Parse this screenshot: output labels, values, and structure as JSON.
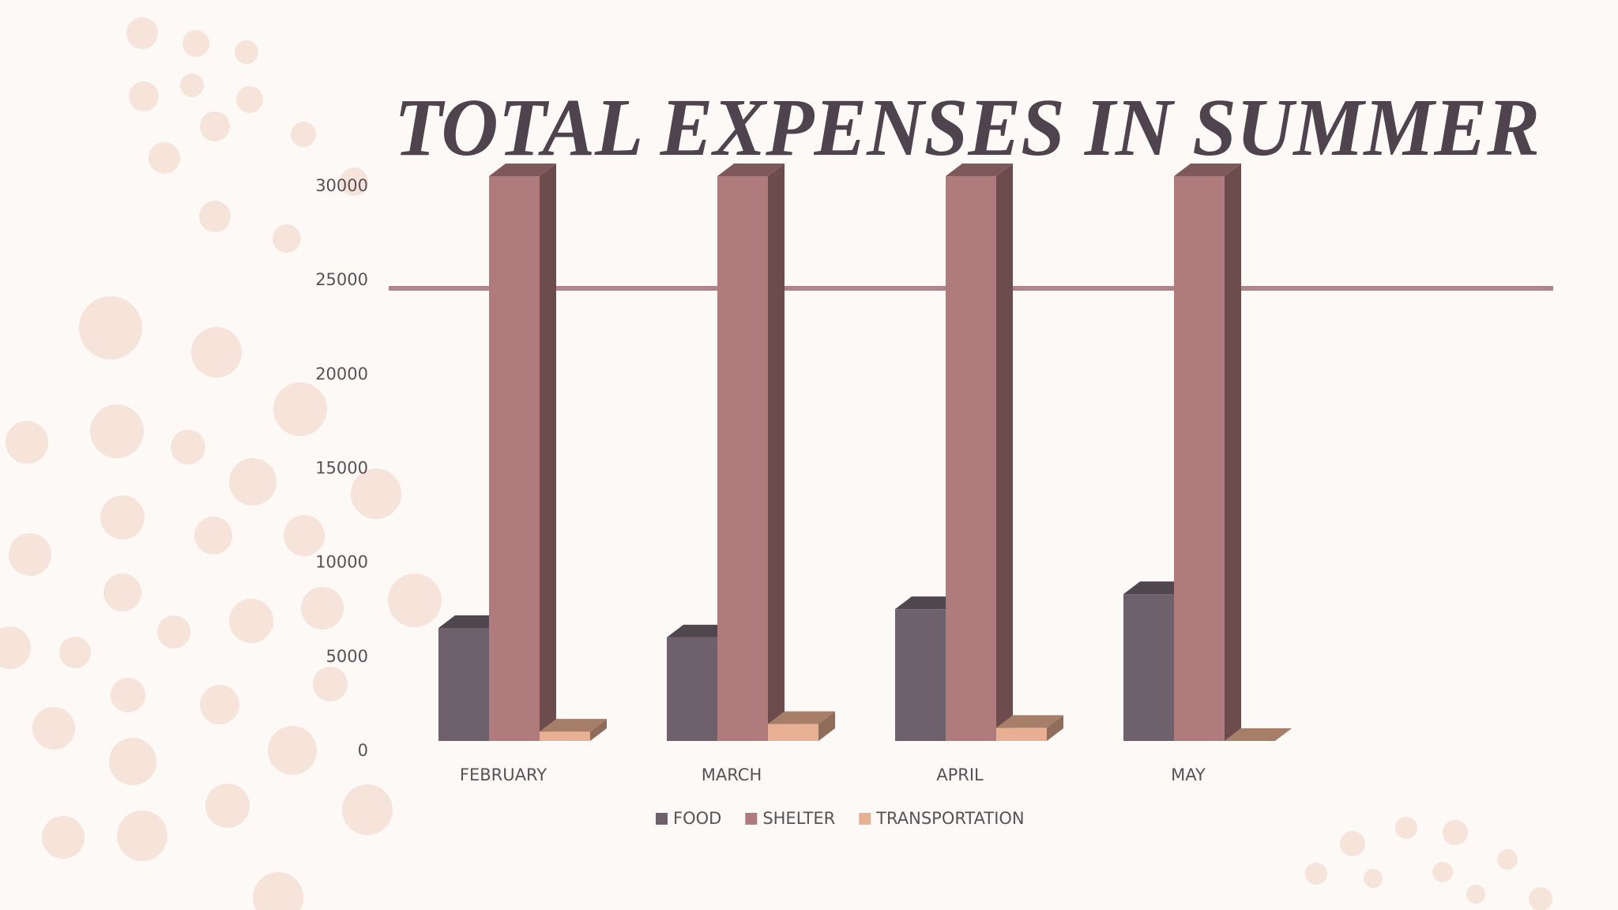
{
  "chart_data": {
    "type": "bar3d",
    "title": "TOTAL EXPENSES IN SUMMER",
    "categories": [
      "FEBRUARY",
      "MARCH",
      "APRIL",
      "MAY"
    ],
    "series": [
      {
        "name": "FOOD",
        "color": "#6f616b",
        "values": [
          6000,
          5500,
          7000,
          7800
        ]
      },
      {
        "name": "SHELTER",
        "color": "#b07b7c",
        "values": [
          30000,
          30000,
          30000,
          30000
        ]
      },
      {
        "name": "TRANSPORTATION",
        "color": "#e8b092",
        "values": [
          500,
          900,
          700,
          0
        ]
      }
    ],
    "ylim": [
      0,
      30000
    ],
    "yticks": [
      0,
      5000,
      10000,
      15000,
      20000,
      25000,
      30000
    ],
    "grid": false,
    "legend": "bottom"
  }
}
